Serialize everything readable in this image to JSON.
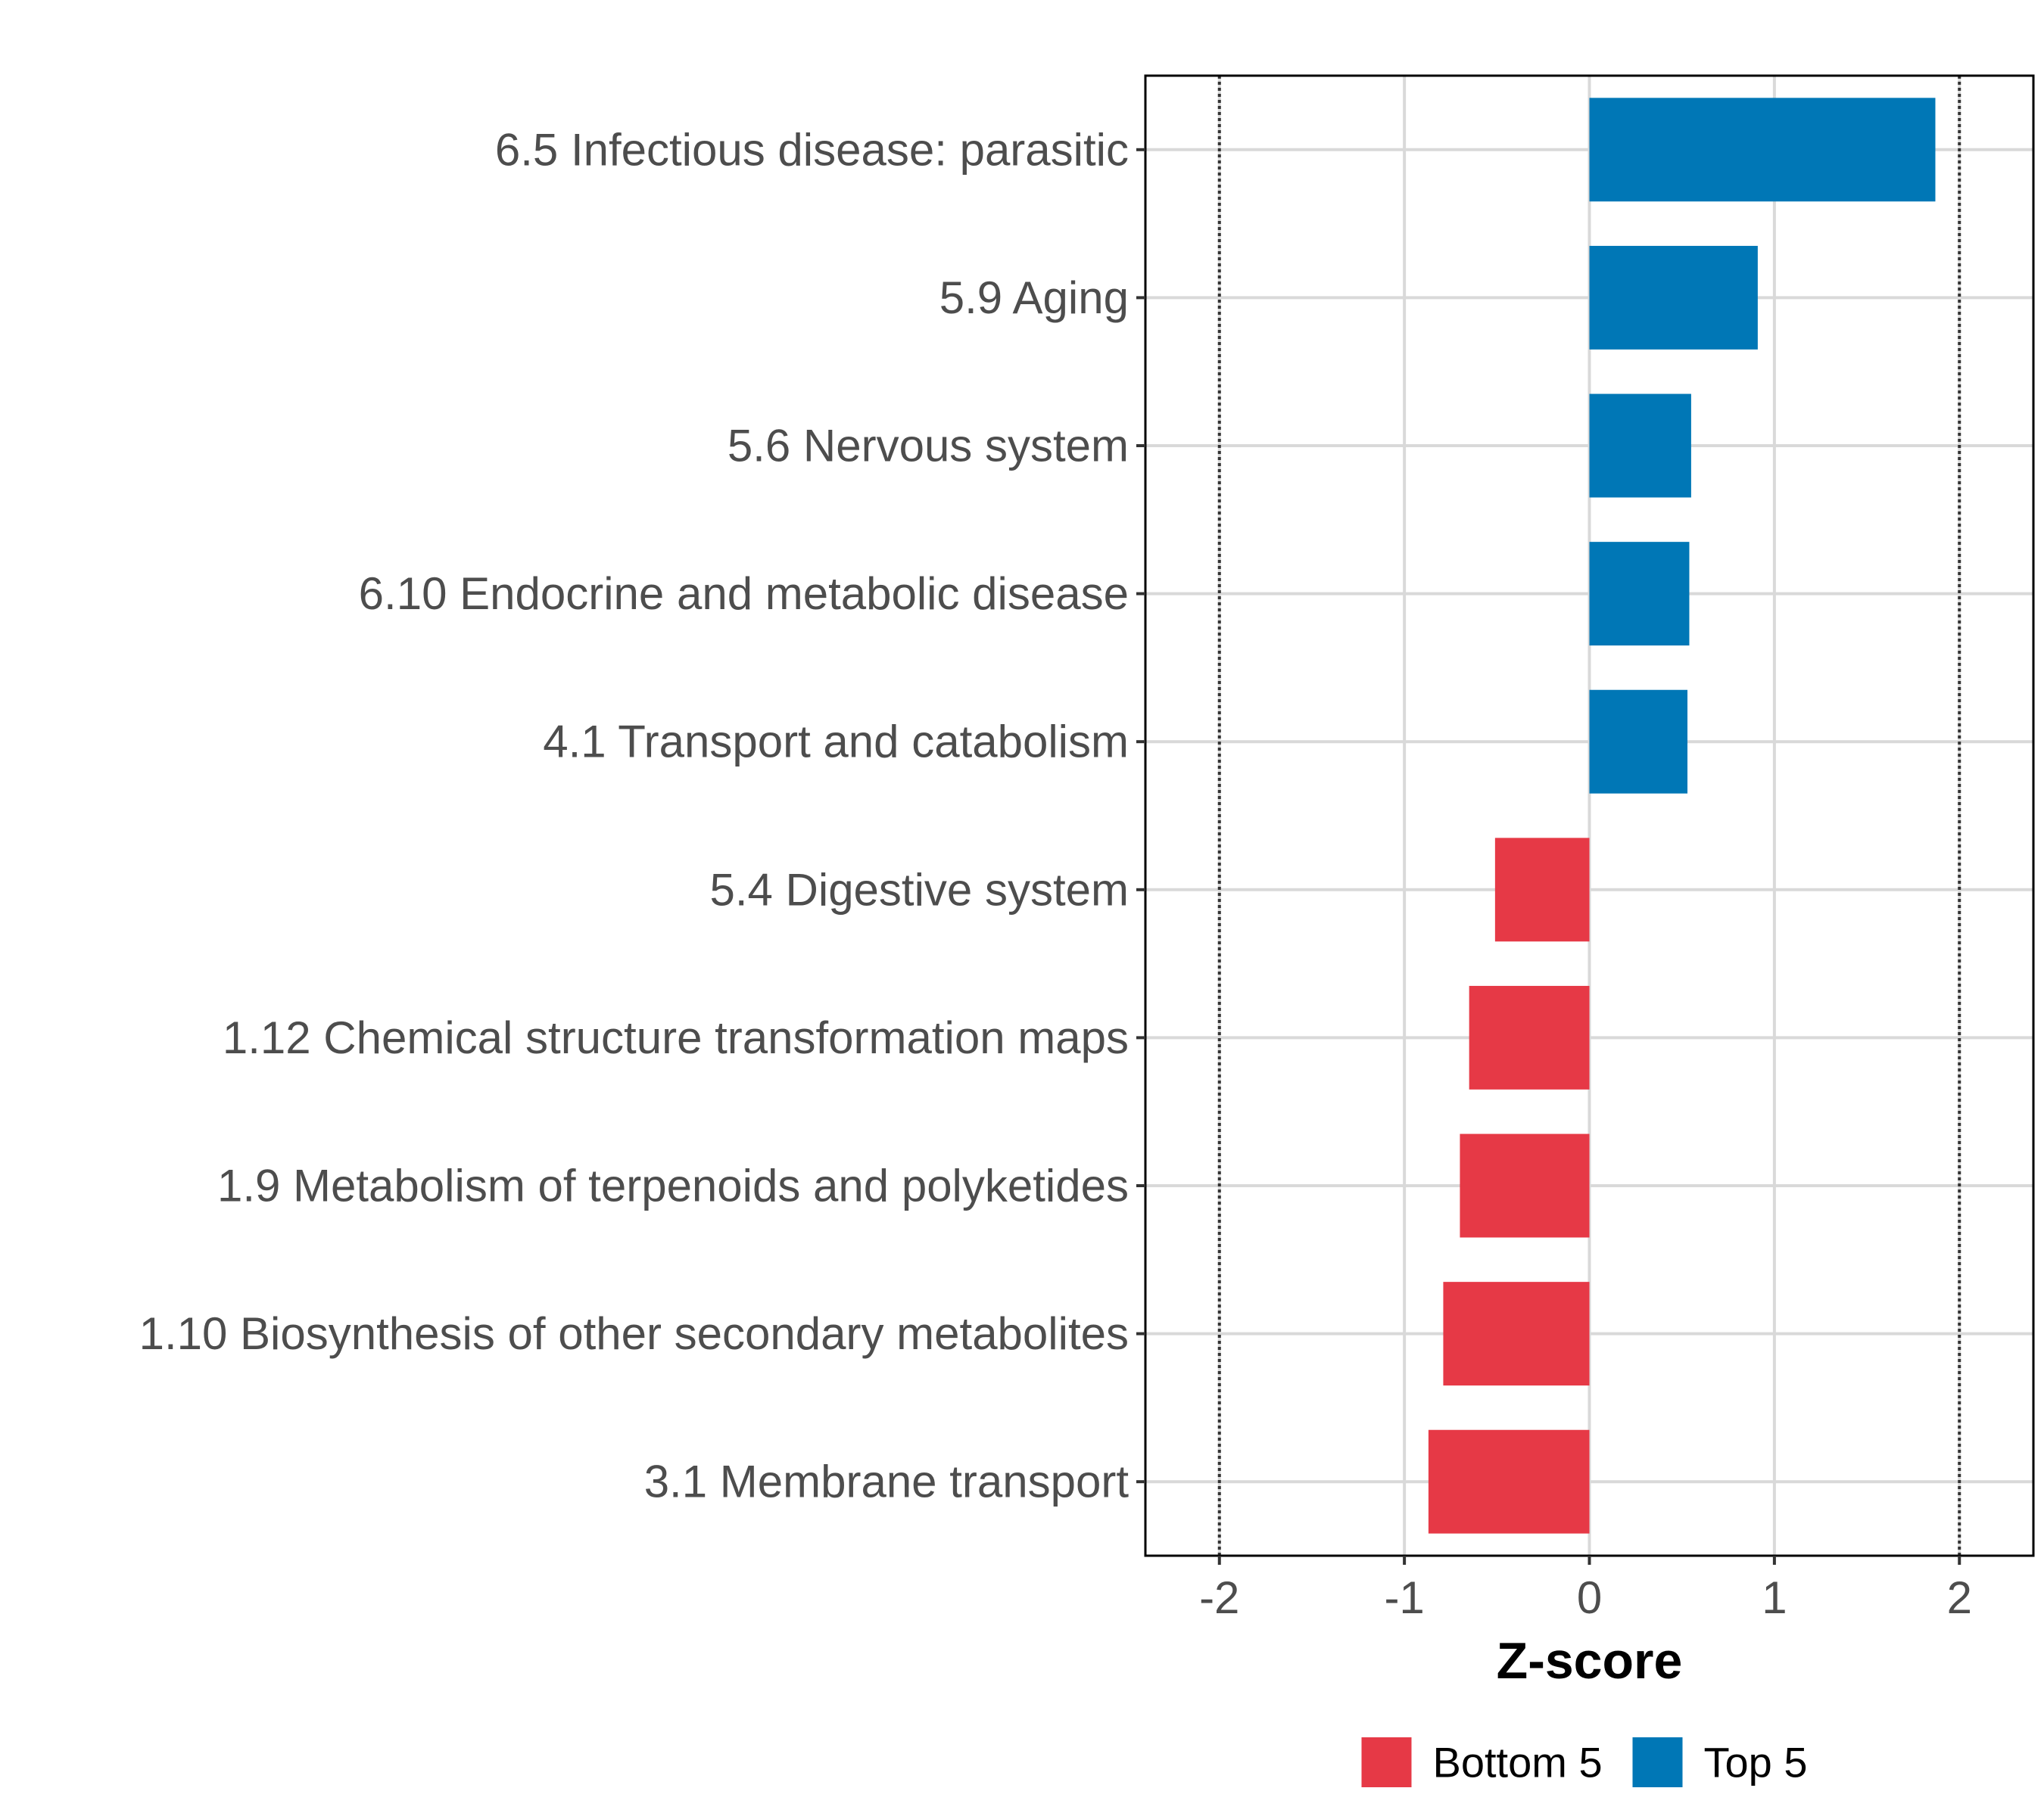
{
  "chart_data": {
    "type": "bar",
    "orientation": "horizontal",
    "categories": [
      "6.5 Infectious disease: parasitic",
      "5.9 Aging",
      "5.6 Nervous system",
      "6.10 Endocrine and metabolic disease",
      "4.1 Transport and catabolism",
      "5.4 Digestive system",
      "1.12 Chemical structure transformation maps",
      "1.9 Metabolism of terpenoids and polyketides",
      "1.10 Biosynthesis of other secondary metabolites",
      "3.1 Membrane transport"
    ],
    "values": [
      1.87,
      0.91,
      0.55,
      0.54,
      0.53,
      -0.51,
      -0.65,
      -0.7,
      -0.79,
      -0.87
    ],
    "groups": [
      "Top 5",
      "Top 5",
      "Top 5",
      "Top 5",
      "Top 5",
      "Bottom 5",
      "Bottom 5",
      "Bottom 5",
      "Bottom 5",
      "Bottom 5"
    ],
    "xlabel": "Z-score",
    "ylabel": "",
    "xlim": [
      -2.4,
      2.4
    ],
    "xticks": [
      -2,
      -1,
      0,
      1,
      2
    ],
    "xtick_labels": [
      "-2",
      "-1",
      "0",
      "1",
      "2"
    ],
    "reference_lines": [
      -2,
      2
    ],
    "grid": true,
    "legend": {
      "position": "bottom",
      "entries": [
        {
          "label": "Bottom 5",
          "color": "#E63946"
        },
        {
          "label": "Top 5",
          "color": "#0077B6"
        }
      ]
    },
    "colors": {
      "Bottom 5": "#E63946",
      "Top 5": "#0077B6"
    }
  }
}
